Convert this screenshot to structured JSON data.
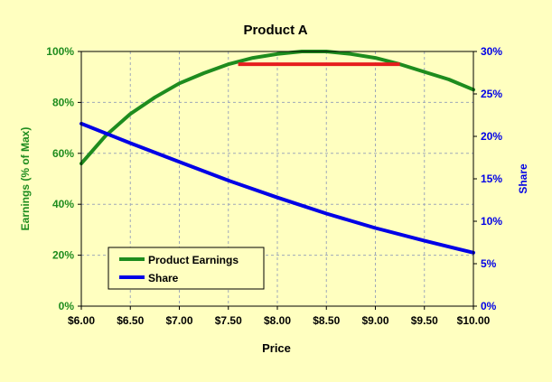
{
  "chart_data": {
    "type": "line",
    "title": "Product A",
    "xlabel": "Price",
    "ylabel_left": "Earnings (% of Max)",
    "ylabel_right": "Share",
    "xlim": [
      6.0,
      10.0
    ],
    "ylim_left": [
      0,
      100
    ],
    "ylim_right": [
      0,
      30
    ],
    "x_ticks": [
      6.0,
      6.5,
      7.0,
      7.5,
      8.0,
      8.5,
      9.0,
      9.5,
      10.0
    ],
    "x_tick_labels": [
      "$6.00",
      "$6.50",
      "$7.00",
      "$7.50",
      "$8.00",
      "$8.50",
      "$9.00",
      "$9.50",
      "$10.00"
    ],
    "y_left_ticks": [
      0,
      20,
      40,
      60,
      80,
      100
    ],
    "y_left_tick_labels": [
      "0%",
      "20%",
      "40%",
      "60%",
      "80%",
      "100%"
    ],
    "y_right_ticks": [
      0,
      5,
      10,
      15,
      20,
      25,
      30
    ],
    "y_right_tick_labels": [
      "0%",
      "5%",
      "10%",
      "15%",
      "20%",
      "25%",
      "30%"
    ],
    "grid": true,
    "legend_position": "bottom-left",
    "series": [
      {
        "name": "Product Earnings",
        "axis": "left",
        "color": "#1e8c1e",
        "x": [
          6.0,
          6.25,
          6.5,
          6.75,
          7.0,
          7.25,
          7.5,
          7.75,
          8.0,
          8.25,
          8.5,
          8.75,
          9.0,
          9.25,
          9.5,
          9.75,
          10.0
        ],
        "values": [
          56,
          67,
          75.5,
          82,
          87.5,
          91.5,
          95,
          97.5,
          99,
          100,
          100,
          99,
          97.5,
          95,
          92,
          89,
          85
        ]
      },
      {
        "name": "Share",
        "axis": "right",
        "color": "#0000e6",
        "x": [
          6.0,
          6.5,
          7.0,
          7.5,
          8.0,
          8.5,
          9.0,
          9.5,
          10.0
        ],
        "values": [
          21.5,
          19.2,
          17.0,
          14.8,
          12.8,
          10.9,
          9.2,
          7.7,
          6.3
        ]
      }
    ],
    "annotations": [
      {
        "type": "range-line",
        "color": "#e61e1e",
        "x": [
          7.6,
          9.25
        ],
        "y": 95,
        "axis": "left"
      }
    ],
    "colors": {
      "background": "#ffffc0",
      "plot_background": "#ffffc0",
      "grid": "#9fa9b9",
      "left_axis_text": "#1e8c1e",
      "right_axis_text": "#0000e6",
      "text": "#000000"
    }
  }
}
